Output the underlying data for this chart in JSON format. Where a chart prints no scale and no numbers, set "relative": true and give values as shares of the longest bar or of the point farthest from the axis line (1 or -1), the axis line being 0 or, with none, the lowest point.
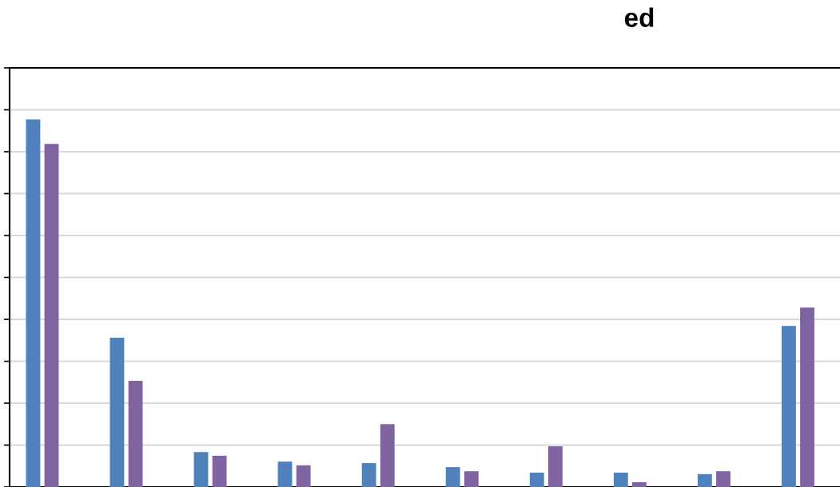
{
  "chart_data": {
    "type": "bar",
    "title": "ed",
    "relative": true,
    "grid": "y",
    "categories": [
      null,
      null,
      null,
      null,
      null,
      null,
      null,
      null,
      null,
      null
    ],
    "series": [
      {
        "color": "#4f81bd",
        "values": [
          1,
          0.406,
          0.095,
          0.069,
          0.065,
          0.054,
          0.039,
          0.039,
          0.035,
          0.438
        ]
      },
      {
        "color": "#8064a2",
        "values": [
          0.933,
          0.289,
          0.085,
          0.059,
          0.171,
          0.043,
          0.111,
          0.013,
          0.043,
          0.488
        ]
      }
    ]
  }
}
